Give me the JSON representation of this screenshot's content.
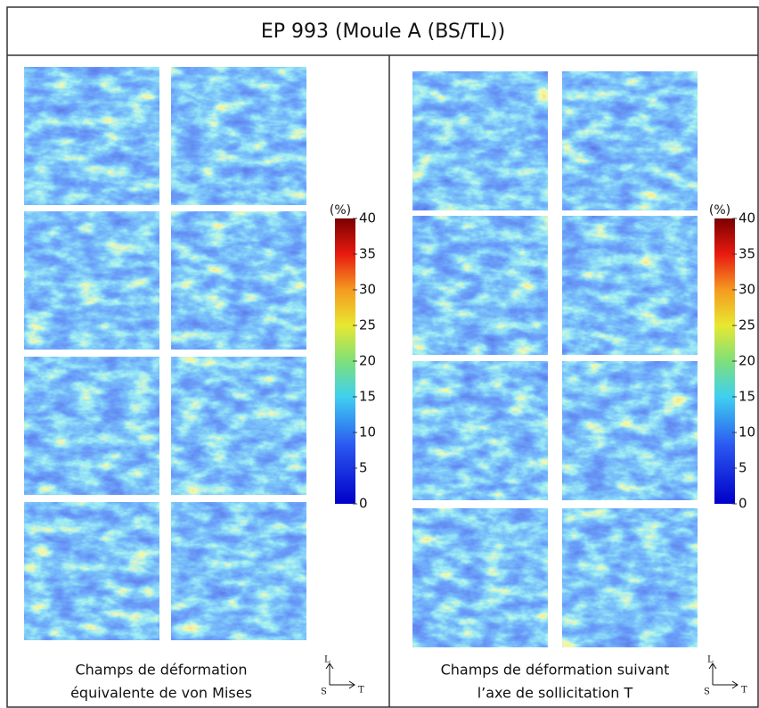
{
  "title": "EP 993 (Moule A (BS/TL))",
  "panels": [
    {
      "caption_lines": [
        "Champs de déformation",
        "équivalente de von Mises"
      ],
      "colorbar": {
        "unit": "(%)",
        "ticks": [
          0,
          5,
          10,
          15,
          20,
          25,
          30,
          35,
          40
        ]
      },
      "axes": {
        "up": "L",
        "origin": "S",
        "right": "T"
      }
    },
    {
      "caption_lines": [
        "Champs de déformation suivant",
        "l’axe de sollicitation T"
      ],
      "colorbar": {
        "unit": "(%)",
        "ticks": [
          0,
          5,
          10,
          15,
          20,
          25,
          30,
          35,
          40
        ]
      },
      "axes": {
        "up": "L",
        "origin": "S",
        "right": "T"
      }
    }
  ]
}
